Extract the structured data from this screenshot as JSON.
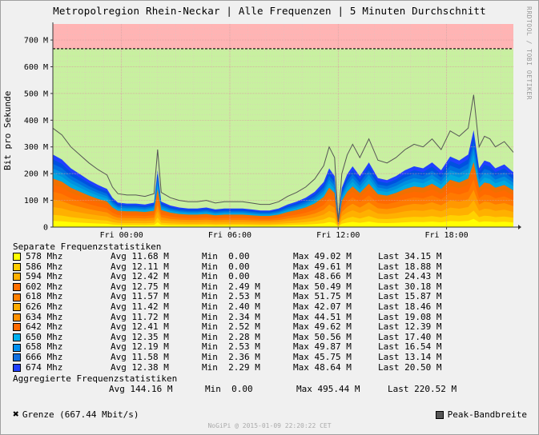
{
  "title": "Metropolregion Rhein-Neckar | Alle Frequenzen | 5 Minuten Durchschnitt",
  "side_credit": "RRDTOOL / TOBI OETIKER",
  "footer": "NoGiPi @ 2015-01-09 22:20:22 CET",
  "colors": {
    "limit_zone": "#ffb4b4",
    "normal_zone": "#c8f0a0",
    "grid_minor": "#e0c0c0",
    "peak_line": "#555555"
  },
  "chart_data": {
    "type": "area",
    "title": "Metropolregion Rhein-Neckar | Alle Frequenzen | 5 Minuten Durchschnitt",
    "ylabel": "Bit pro Sekunde",
    "ylim": [
      0,
      760
    ],
    "y_ticks": [
      {
        "value": 0,
        "label": "0"
      },
      {
        "value": 100,
        "label": "100 M"
      },
      {
        "value": 200,
        "label": "200 M"
      },
      {
        "value": 300,
        "label": "300 M"
      },
      {
        "value": 400,
        "label": "400 M"
      },
      {
        "value": 500,
        "label": "500 M"
      },
      {
        "value": 600,
        "label": "600 M"
      },
      {
        "value": 700,
        "label": "700 M"
      }
    ],
    "x_range_hours": [
      -3.8,
      21.7
    ],
    "x_ticks": [
      {
        "hour": 0,
        "label": "Fri 00:00"
      },
      {
        "hour": 6,
        "label": "Fri 06:00"
      },
      {
        "hour": 12,
        "label": "Fri 12:00"
      },
      {
        "hour": 18,
        "label": "Fri 18:00"
      }
    ],
    "limit": 667.44,
    "peak_series": {
      "name": "Peak-Bandbreite",
      "hours": [
        -3.8,
        -3.3,
        -2.8,
        -2.3,
        -1.8,
        -1.3,
        -0.8,
        -0.5,
        -0.2,
        0.3,
        0.8,
        1.3,
        1.8,
        2.0,
        2.2,
        2.7,
        3.2,
        3.7,
        4.2,
        4.7,
        5.2,
        5.7,
        6.2,
        6.7,
        7.2,
        7.7,
        8.2,
        8.7,
        9.2,
        9.7,
        10.2,
        10.7,
        11.2,
        11.5,
        11.8,
        12.0,
        12.2,
        12.5,
        12.8,
        13.2,
        13.7,
        14.2,
        14.7,
        15.2,
        15.7,
        16.2,
        16.7,
        17.2,
        17.7,
        18.2,
        18.7,
        19.2,
        19.5,
        19.8,
        20.1,
        20.4,
        20.7,
        21.2,
        21.7
      ],
      "values": [
        370,
        345,
        300,
        270,
        240,
        215,
        195,
        150,
        125,
        120,
        120,
        115,
        125,
        290,
        130,
        110,
        100,
        95,
        95,
        100,
        90,
        95,
        95,
        95,
        90,
        85,
        85,
        95,
        115,
        130,
        150,
        180,
        230,
        300,
        260,
        20,
        200,
        270,
        310,
        260,
        330,
        250,
        240,
        260,
        290,
        310,
        300,
        330,
        290,
        360,
        340,
        370,
        495,
        300,
        340,
        330,
        300,
        320,
        280
      ]
    },
    "layer_fractions": [
      0.08,
      0.16,
      0.26,
      0.36,
      0.46,
      0.55,
      0.63,
      0.7,
      0.76,
      0.82,
      0.88,
      0.94
    ],
    "layer_colors": [
      "#ffff00",
      "#ffd200",
      "#ffb000",
      "#ff9800",
      "#ff7a00",
      "#ff6a00",
      "#f07000",
      "#00a8e0",
      "#0090e0",
      "#0070e0",
      "#0050e0",
      "#2040ff"
    ]
  },
  "stats": {
    "separate_title": "Separate Frequenzstatistiken",
    "rows": [
      {
        "label": "578 Mhz",
        "color": "#ffff00",
        "avg": "Avg 11.68 M",
        "min": "Min  0.00",
        "max": "Max 49.02 M",
        "last": "Last 34.15 M"
      },
      {
        "label": "586 Mhz",
        "color": "#ffcc00",
        "avg": "Avg 12.11 M",
        "min": "Min  0.00",
        "max": "Max 49.61 M",
        "last": "Last 18.88 M"
      },
      {
        "label": "594 Mhz",
        "color": "#ffb000",
        "avg": "Avg 12.42 M",
        "min": "Min  0.00",
        "max": "Max 48.66 M",
        "last": "Last 24.43 M"
      },
      {
        "label": "602 Mhz",
        "color": "#ff7000",
        "avg": "Avg 12.75 M",
        "min": "Min  2.49 M",
        "max": "Max 50.49 M",
        "last": "Last 30.18 M"
      },
      {
        "label": "618 Mhz",
        "color": "#ff8000",
        "avg": "Avg 11.57 M",
        "min": "Min  2.53 M",
        "max": "Max 51.75 M",
        "last": "Last 15.87 M"
      },
      {
        "label": "626 Mhz",
        "color": "#ffaa00",
        "avg": "Avg 11.42 M",
        "min": "Min  2.40 M",
        "max": "Max 42.07 M",
        "last": "Last 18.46 M"
      },
      {
        "label": "634 Mhz",
        "color": "#ff9000",
        "avg": "Avg 11.72 M",
        "min": "Min  2.34 M",
        "max": "Max 44.51 M",
        "last": "Last 19.08 M"
      },
      {
        "label": "642 Mhz",
        "color": "#ff6a00",
        "avg": "Avg 12.41 M",
        "min": "Min  2.52 M",
        "max": "Max 49.62 M",
        "last": "Last 12.39 M"
      },
      {
        "label": "650 Mhz",
        "color": "#00b0f0",
        "avg": "Avg 12.35 M",
        "min": "Min  2.28 M",
        "max": "Max 50.56 M",
        "last": "Last 17.40 M"
      },
      {
        "label": "658 Mhz",
        "color": "#0090f0",
        "avg": "Avg 12.19 M",
        "min": "Min  2.53 M",
        "max": "Max 49.87 M",
        "last": "Last 16.54 M"
      },
      {
        "label": "666 Mhz",
        "color": "#1070e0",
        "avg": "Avg 11.58 M",
        "min": "Min  2.36 M",
        "max": "Max 45.75 M",
        "last": "Last 13.14 M"
      },
      {
        "label": "674 Mhz",
        "color": "#2040ff",
        "avg": "Avg 12.38 M",
        "min": "Min  2.29 M",
        "max": "Max 48.64 M",
        "last": "Last 20.50 M"
      }
    ],
    "aggregate_title": "Aggregierte Frequenzstatistiken",
    "aggregate": {
      "avg": "Avg 144.16 M",
      "min": "Min  0.00",
      "max": "Max 495.44 M",
      "last": "Last 220.52 M"
    }
  },
  "legend": {
    "grenze": "Grenze (667.44 Mbit/s)",
    "peak": "Peak-Bandbreite"
  }
}
